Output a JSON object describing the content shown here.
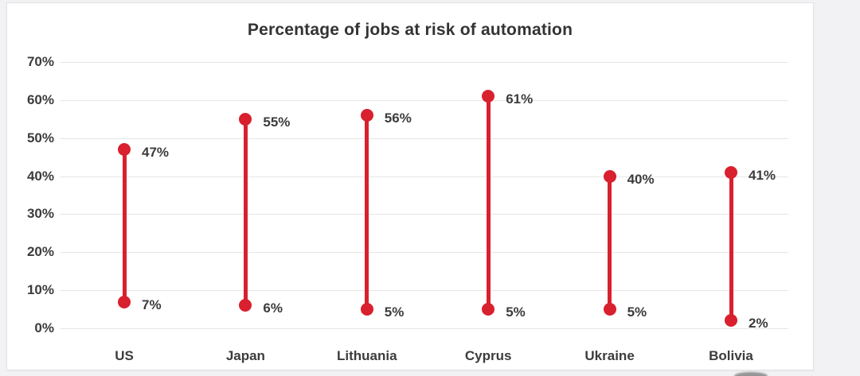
{
  "chart_data": {
    "type": "dumbbell-range",
    "title": "Percentage of jobs at risk of automation",
    "categories": [
      "US",
      "Japan",
      "Lithuania",
      "Cyprus",
      "Ukraine",
      "Bolivia"
    ],
    "series": [
      {
        "name": "high",
        "values": [
          47,
          55,
          56,
          61,
          40,
          41
        ],
        "labels": [
          "47%",
          "55%",
          "56%",
          "61%",
          "40%",
          "41%"
        ]
      },
      {
        "name": "low",
        "values": [
          7,
          6,
          5,
          5,
          5,
          2
        ],
        "labels": [
          "7%",
          "6%",
          "5%",
          "5%",
          "5%",
          "2%"
        ]
      }
    ],
    "y_tick_values": [
      70,
      60,
      50,
      40,
      30,
      20,
      10,
      0
    ],
    "y_tick_labels": [
      "70%",
      "60%",
      "50%",
      "40%",
      "30%",
      "20%",
      "10%",
      "0%"
    ],
    "ylim": [
      0,
      70
    ],
    "grid": true,
    "legend": "none"
  },
  "colors": {
    "accent_red": "#d9202e",
    "gridline": "#e6e6e6",
    "text": "#3c3c3c",
    "title_text": "#333333"
  }
}
